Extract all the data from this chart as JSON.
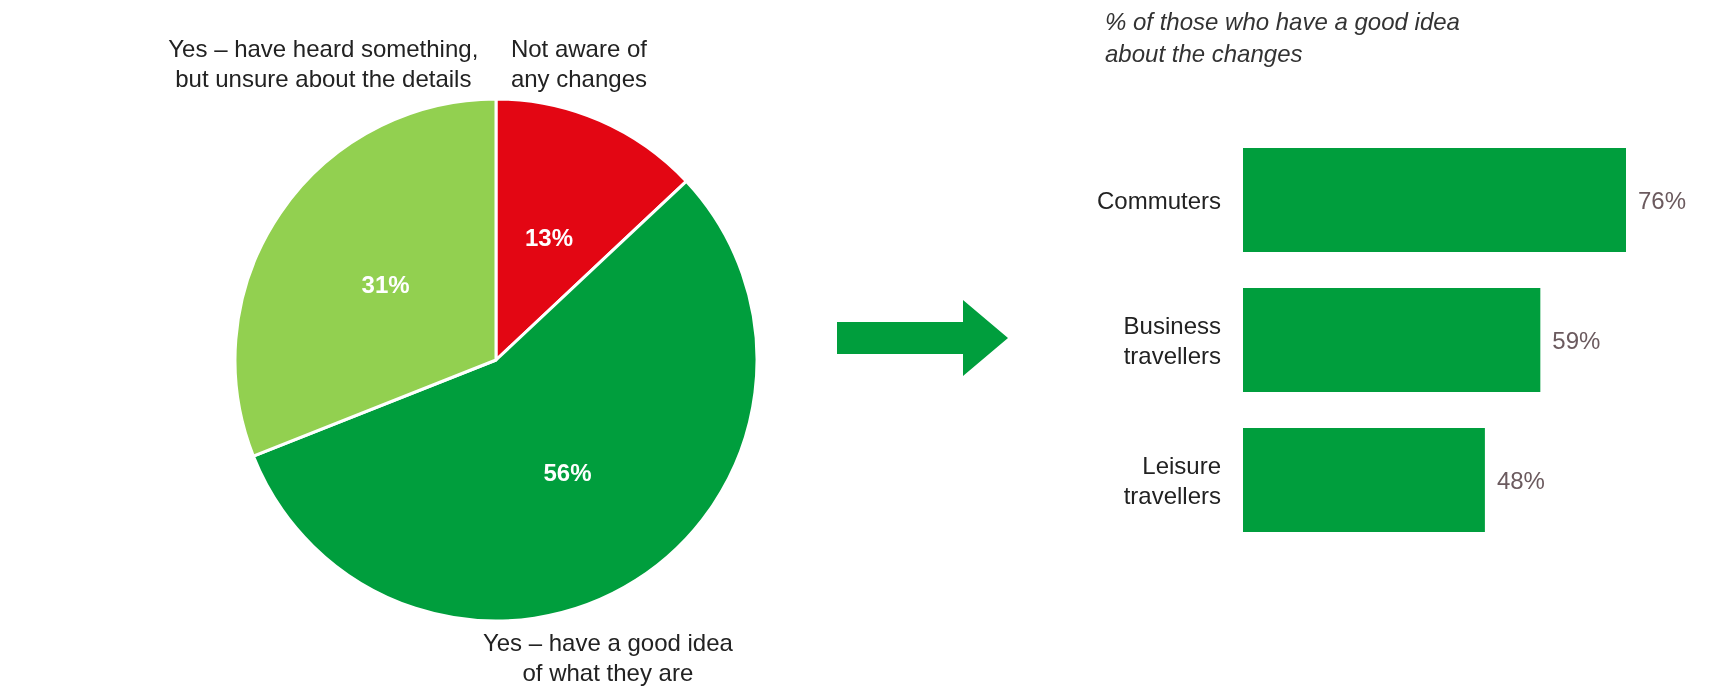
{
  "chart_data": [
    {
      "type": "pie",
      "categories": [
        "Not aware of\nany changes",
        "Yes – have a good idea\nof what they are",
        "Yes – have heard something,\nbut unsure about the details"
      ],
      "values": [
        13,
        56,
        31
      ],
      "colors": [
        "#e30613",
        "#009e3d",
        "#92d050"
      ],
      "value_labels": [
        "13%",
        "56%",
        "31%"
      ]
    },
    {
      "type": "bar",
      "orientation": "horizontal",
      "title": "% of those who have a good idea about the changes",
      "categories": [
        "Commuters",
        "Business\ntravellers",
        "Leisure\ntravellers"
      ],
      "values": [
        76,
        59,
        48
      ],
      "color": "#009e3d",
      "value_labels": [
        "76%",
        "59%",
        "48%"
      ],
      "tick_labels": "y"
    }
  ]
}
